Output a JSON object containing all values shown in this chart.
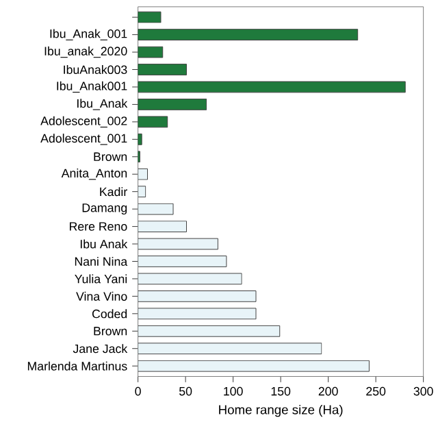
{
  "chart_data": {
    "type": "bar",
    "orientation": "horizontal",
    "xlabel": "Home range size (Ha)",
    "categories": [
      null,
      "Ibu_Anak_001",
      "Ibu_anak_2020",
      "IbuAnak003",
      "Ibu_Anak001",
      "Ibu_Anak",
      "Adolescent_002",
      "Adolescent_001",
      "Brown",
      "Anita_Anton",
      "Kadir",
      "Damang",
      "Rere Reno",
      "Ibu Anak",
      "Nani Nina",
      "Yulia Yani",
      "Vina Vino",
      "Coded",
      "Brown",
      "Jane Jack",
      "Marlenda Martinus"
    ],
    "values": [
      24,
      231,
      26,
      51,
      281,
      72,
      31,
      4,
      2,
      10,
      8,
      37,
      51,
      84,
      93,
      109,
      124,
      124,
      149,
      193,
      243
    ],
    "colors": [
      "#1f7a3c",
      "#1f7a3c",
      "#1f7a3c",
      "#1f7a3c",
      "#1f7a3c",
      "#1f7a3c",
      "#1f7a3c",
      "#1f7a3c",
      "#1f7a3c",
      "#e8f4f8",
      "#e8f4f8",
      "#e8f4f8",
      "#e8f4f8",
      "#e8f4f8",
      "#e8f4f8",
      "#e8f4f8",
      "#e8f4f8",
      "#e8f4f8",
      "#e8f4f8",
      "#e8f4f8",
      "#e8f4f8"
    ],
    "xlim": [
      0,
      300
    ],
    "xticks": [
      0,
      50,
      100,
      150,
      200,
      250,
      300
    ],
    "grid": false
  }
}
